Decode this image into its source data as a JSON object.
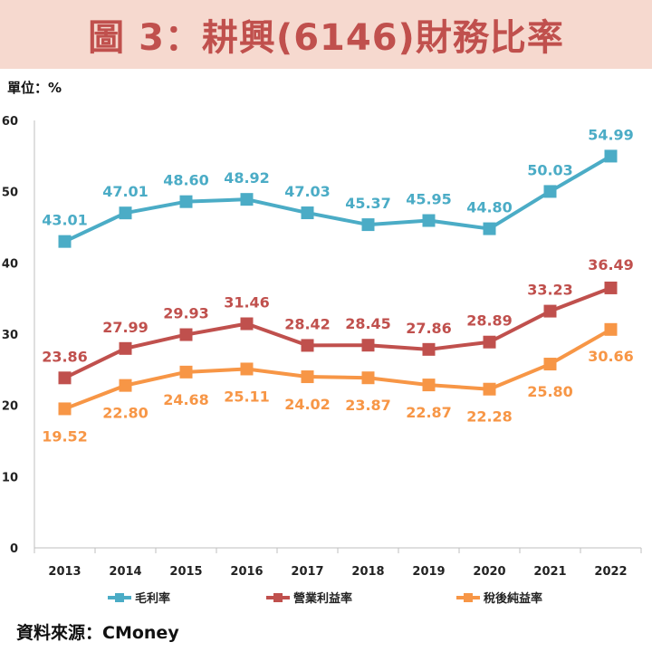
{
  "page": {
    "title": "圖 3：耕興(6146)財務比率",
    "unit": "單位：%",
    "source": "資料來源：CMoney"
  },
  "chart_data": {
    "type": "line",
    "title": "圖 3：耕興(6146)財務比率",
    "ylabel": "單位：%",
    "xlabel": "",
    "ylim": [
      0,
      60
    ],
    "yticks": [
      0,
      10,
      20,
      30,
      40,
      50,
      60
    ],
    "grid": false,
    "legend_position": "bottom",
    "categories": [
      "2013",
      "2014",
      "2015",
      "2016",
      "2017",
      "2018",
      "2019",
      "2020",
      "2021",
      "2022"
    ],
    "series": [
      {
        "name": "毛利率",
        "color": "#4bacc6",
        "values": [
          43.01,
          47.01,
          48.6,
          48.92,
          47.03,
          45.37,
          45.95,
          44.8,
          50.03,
          54.99
        ],
        "labels": [
          "43.01",
          "47.01",
          "48.60",
          "48.92",
          "47.03",
          "45.37",
          "45.95",
          "44.80",
          "50.03",
          "54.99"
        ]
      },
      {
        "name": "營業利益率",
        "color": "#c0504d",
        "values": [
          23.86,
          27.99,
          29.93,
          31.46,
          28.42,
          28.45,
          27.86,
          28.89,
          33.23,
          36.49
        ],
        "labels": [
          "23.86",
          "27.99",
          "29.93",
          "31.46",
          "28.42",
          "28.45",
          "27.86",
          "28.89",
          "33.23",
          "36.49"
        ]
      },
      {
        "name": "稅後純益率",
        "color": "#f79646",
        "values": [
          19.52,
          22.8,
          24.68,
          25.11,
          24.02,
          23.87,
          22.87,
          22.28,
          25.8,
          30.66
        ],
        "labels": [
          "19.52",
          "22.80",
          "24.68",
          "25.11",
          "24.02",
          "23.87",
          "22.87",
          "22.28",
          "25.80",
          "30.66"
        ]
      }
    ]
  }
}
